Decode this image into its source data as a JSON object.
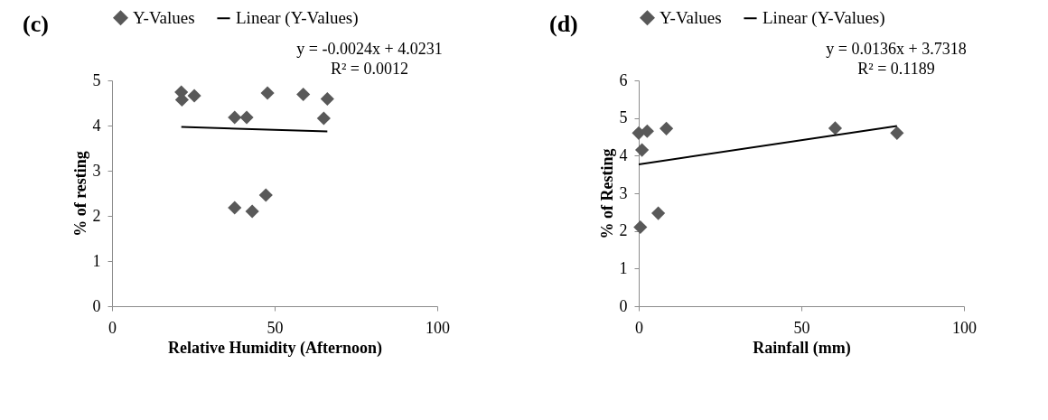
{
  "chart_data": [
    {
      "type": "scatter",
      "title": "(c)",
      "xlabel": "Relative Humidity (Afternoon)",
      "ylabel": "% of resting",
      "xlim": [
        0,
        100
      ],
      "xticks": [
        0,
        50,
        100
      ],
      "ylim": [
        0,
        5
      ],
      "yticks": [
        0,
        1,
        2,
        3,
        4,
        5
      ],
      "grid": false,
      "legend": "top",
      "annotations": [
        "y = -0.0024x + 4.0231",
        "R² = 0.0012"
      ],
      "series": [
        {
          "name": "Y-Values",
          "marker": "diamond",
          "color": "#595959",
          "x": [
            21.3,
            21.5,
            25.3,
            47.8,
            58.8,
            66.2,
            65.1,
            37.7,
            41.4,
            37.7,
            43.1,
            47.3
          ],
          "values": [
            4.74,
            4.57,
            4.66,
            4.72,
            4.69,
            4.59,
            4.16,
            4.18,
            4.18,
            2.18,
            2.1,
            2.46
          ]
        },
        {
          "name": "Linear (Y-Values)",
          "type": "line",
          "marker": "none",
          "color": "#000000",
          "x": [
            21.3,
            66.2
          ],
          "values": [
            3.97,
            3.87
          ]
        }
      ]
    },
    {
      "type": "scatter",
      "title": "(d)",
      "xlabel": "Rainfall (mm)",
      "ylabel": "% of Resting",
      "xlim": [
        0,
        100
      ],
      "xticks": [
        0,
        50,
        100
      ],
      "ylim": [
        0,
        6
      ],
      "yticks": [
        0,
        1,
        2,
        3,
        4,
        5,
        6
      ],
      "grid": false,
      "legend": "top",
      "annotations": [
        "y = 0.0136x + 3.7318",
        "R² = 0.1189"
      ],
      "series": [
        {
          "name": "Y-Values",
          "marker": "diamond",
          "color": "#595959",
          "x": [
            0.5,
            6.0,
            1.0,
            0.0,
            2.6,
            8.5,
            60.4,
            79.4
          ],
          "values": [
            2.1,
            2.47,
            4.15,
            4.6,
            4.65,
            4.72,
            4.73,
            4.6
          ]
        },
        {
          "name": "Linear (Y-Values)",
          "type": "line",
          "marker": "none",
          "color": "#000000",
          "x": [
            0.0,
            79.4
          ],
          "values": [
            3.77,
            4.79
          ]
        }
      ]
    }
  ]
}
